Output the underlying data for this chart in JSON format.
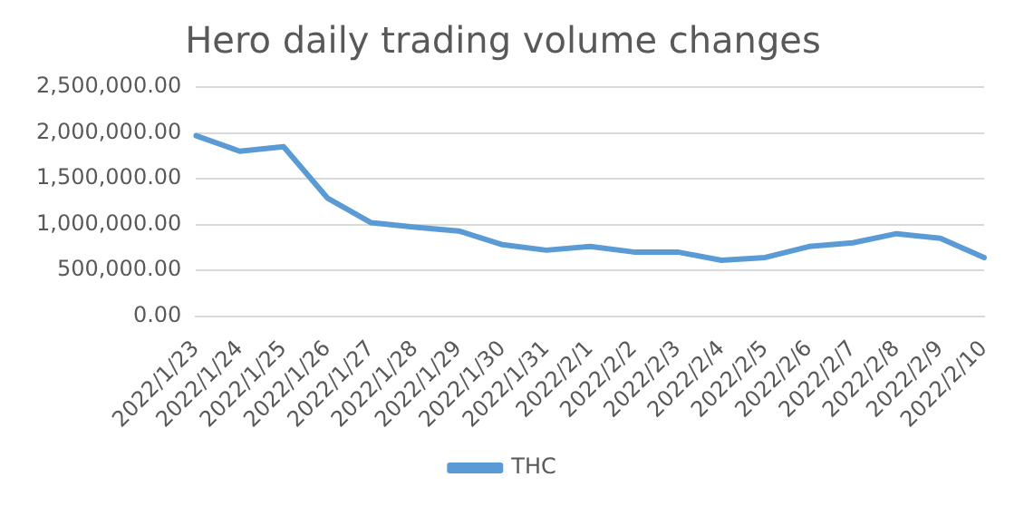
{
  "chart_data": {
    "type": "line",
    "title": "Hero daily trading volume changes",
    "categories": [
      "2022/1/23",
      "2022/1/24",
      "2022/1/25",
      "2022/1/26",
      "2022/1/27",
      "2022/1/28",
      "2022/1/29",
      "2022/1/30",
      "2022/1/31",
      "2022/2/1",
      "2022/2/2",
      "2022/2/3",
      "2022/2/4",
      "2022/2/5",
      "2022/2/6",
      "2022/2/7",
      "2022/2/8",
      "2022/2/9",
      "2022/2/10"
    ],
    "series": [
      {
        "name": "THC",
        "color": "#5b9bd5",
        "values": [
          1970000,
          1800000,
          1850000,
          1290000,
          1020000,
          970000,
          930000,
          780000,
          720000,
          760000,
          700000,
          700000,
          610000,
          640000,
          760000,
          800000,
          900000,
          850000,
          640000
        ]
      }
    ],
    "ylim": [
      0,
      2500000
    ],
    "yticks": [
      {
        "value": 0,
        "label": "0.00"
      },
      {
        "value": 500000,
        "label": "500,000.00"
      },
      {
        "value": 1000000,
        "label": "1,000,000.00"
      },
      {
        "value": 1500000,
        "label": "1,500,000.00"
      },
      {
        "value": 2000000,
        "label": "2,000,000.00"
      },
      {
        "value": 2500000,
        "label": "2,500,000.00"
      }
    ],
    "grid": "y",
    "legend": "bottom",
    "marker": "none",
    "line_style": "solid"
  }
}
